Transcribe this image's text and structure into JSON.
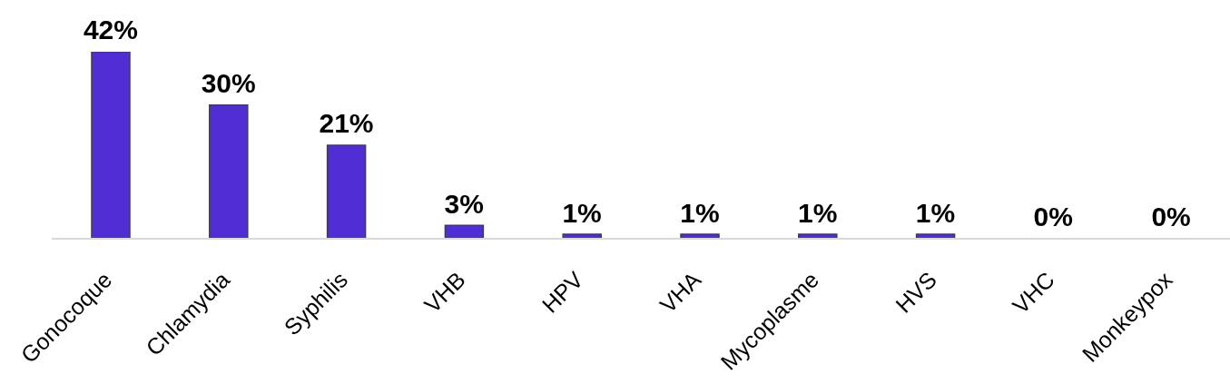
{
  "chart_data": {
    "type": "bar",
    "categories": [
      "Gonocoque",
      "Chlamydia",
      "Syphilis",
      "VHB",
      "HPV",
      "VHA",
      "Mycoplasme",
      "HVS",
      "VHC",
      "Monkeypox"
    ],
    "values": [
      42,
      30,
      21,
      3,
      1,
      1,
      1,
      1,
      0,
      0
    ],
    "value_labels": [
      "42%",
      "30%",
      "21%",
      "3%",
      "1%",
      "1%",
      "1%",
      "1%",
      "0%",
      "0%"
    ],
    "color": "#512dd4",
    "tick_labels": "x"
  }
}
